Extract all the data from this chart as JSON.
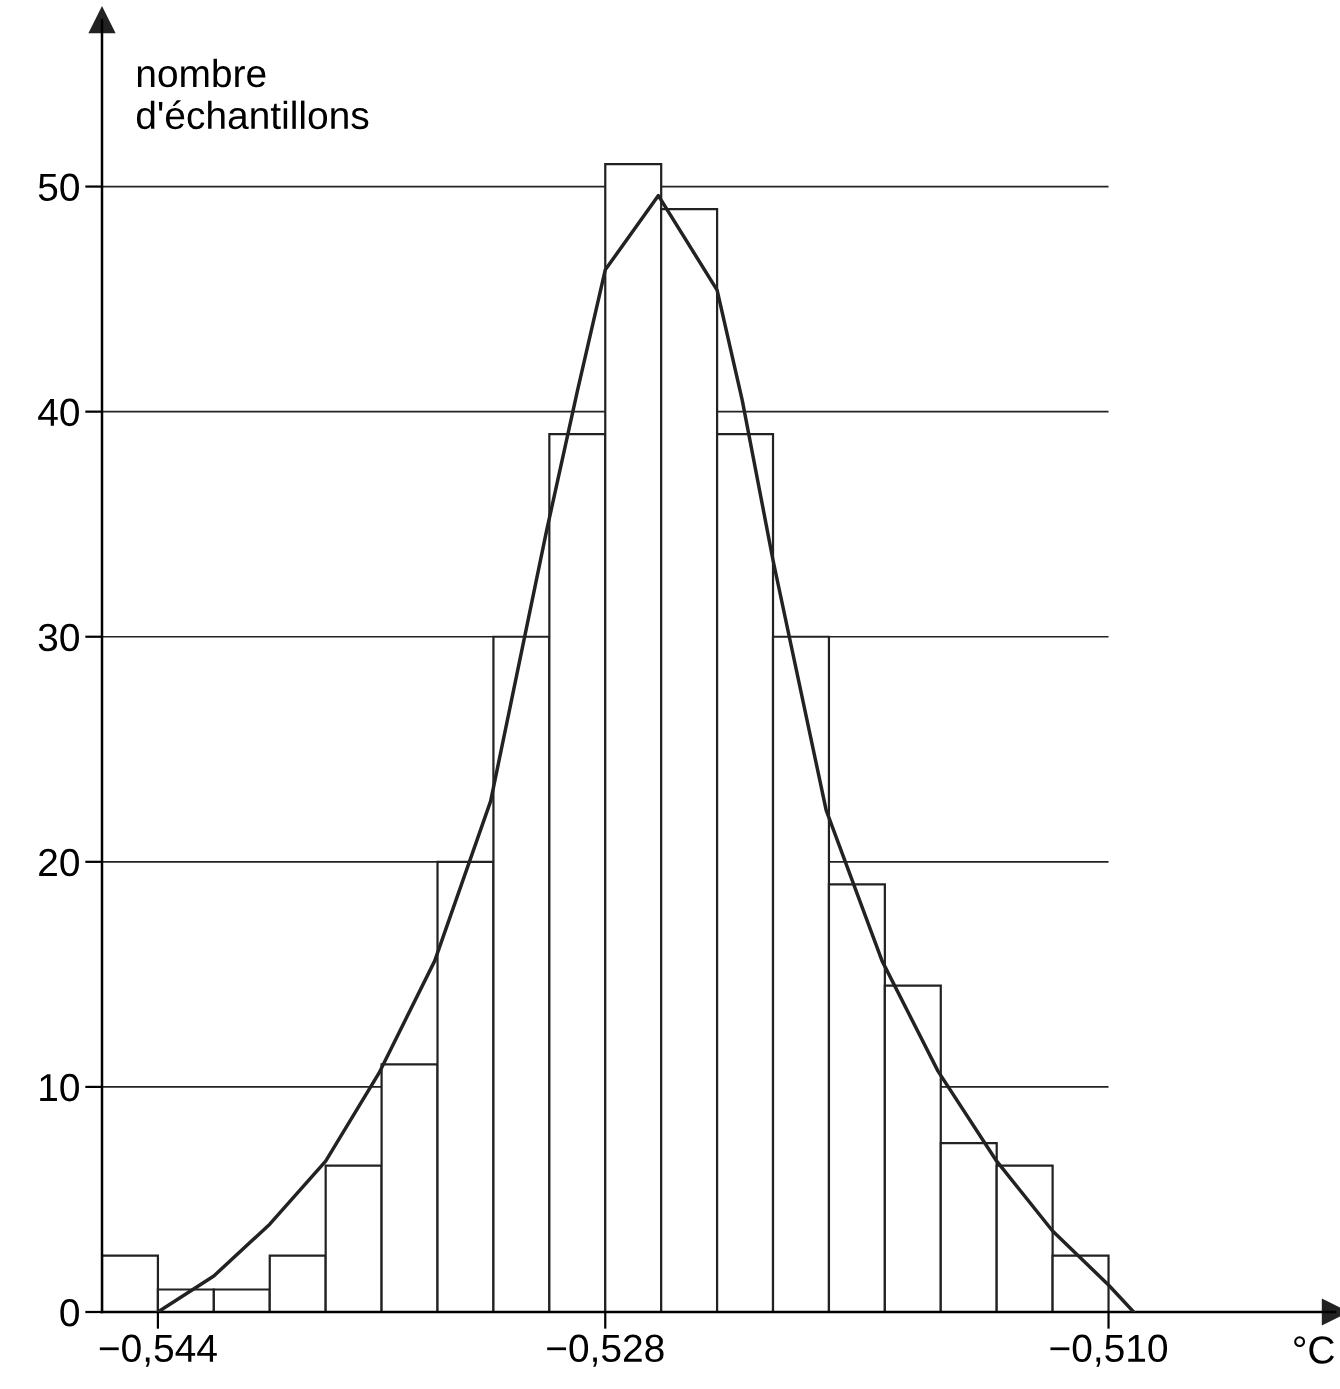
{
  "chart_data": {
    "type": "histogram",
    "xlabel": "°C",
    "ylabel": "nombre\nd'échantillons",
    "bins": [
      -0.546,
      -0.544,
      -0.542,
      -0.54,
      -0.538,
      -0.536,
      -0.534,
      -0.532,
      -0.53,
      -0.528,
      -0.526,
      -0.524,
      -0.522,
      -0.52,
      -0.518,
      -0.516,
      -0.514,
      -0.512,
      -0.51
    ],
    "values": [
      2.5,
      1,
      1,
      2.5,
      6.5,
      11,
      20,
      30,
      39,
      51,
      49,
      39,
      30,
      19,
      14.5,
      7.5,
      6.5,
      2.5
    ],
    "color": "#ffffff",
    "series": [
      {
        "type": "line",
        "color": "#222222",
        "x": [
          -0.544,
          -0.542,
          -0.54,
          -0.538,
          -0.5361,
          -0.5341,
          -0.5321,
          -0.5301,
          -0.529,
          -0.528,
          -0.5261,
          -0.524,
          -0.5231,
          -0.522,
          -0.5201,
          -0.5181,
          -0.5161,
          -0.514,
          -0.512,
          -0.51,
          -0.5091
        ],
        "values": [
          0,
          1.6,
          3.9,
          6.7,
          10.6,
          15.6,
          22.7,
          34.7,
          40.9,
          46.3,
          49.6,
          45.4,
          40.5,
          33.4,
          22.3,
          15.6,
          10.7,
          6.7,
          3.6,
          1.2,
          0
        ]
      }
    ],
    "xlim": [
      -0.546,
      -0.5019
    ],
    "ylim": [
      0,
      57.4
    ],
    "xticks": [
      {
        "value": -0.544,
        "label": "−0,544"
      },
      {
        "value": -0.528,
        "label": "−0,528"
      },
      {
        "value": -0.51,
        "label": "−0,510"
      }
    ],
    "yticks": [
      0,
      10,
      20,
      30,
      40,
      50
    ],
    "grid": "y",
    "legend": false
  }
}
